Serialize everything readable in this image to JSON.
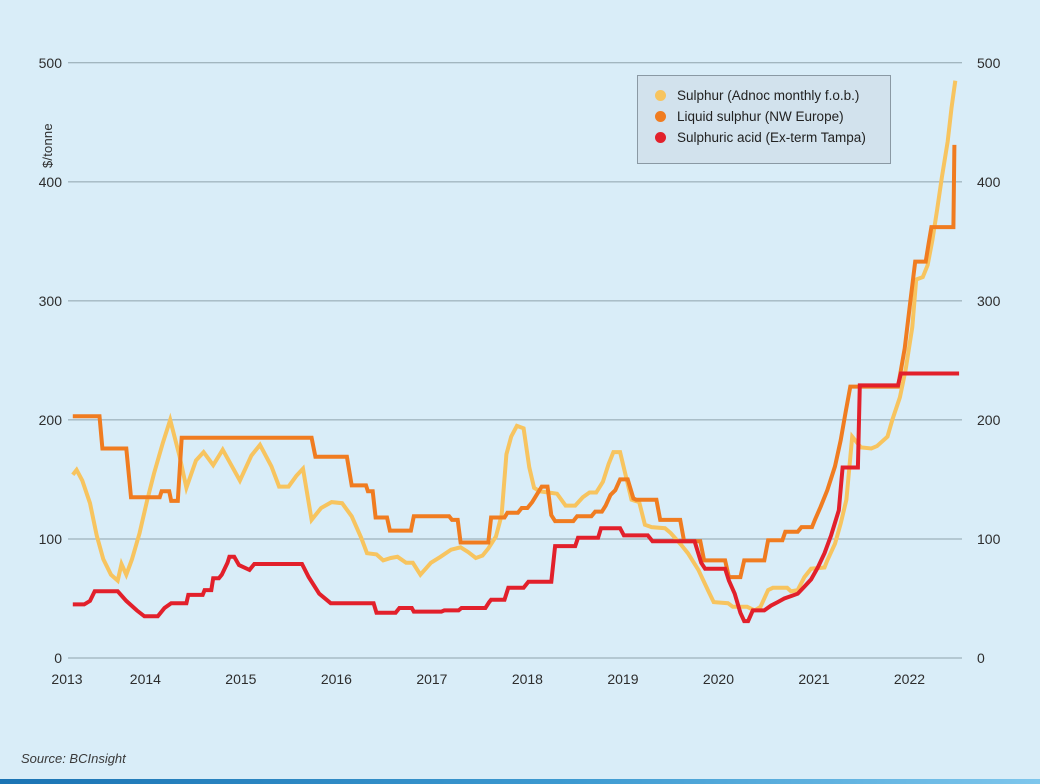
{
  "page": {
    "background": "#D9EDF8"
  },
  "source": "Source: BCInsight",
  "chart_data": {
    "type": "line",
    "title": "",
    "xlabel": "",
    "ylabel": "$/tonne",
    "x_ticks": [
      2013,
      2014,
      2015,
      2016,
      2017,
      2018,
      2019,
      2020,
      2021,
      2022
    ],
    "y_ticks": [
      0,
      100,
      200,
      300,
      400,
      500
    ],
    "xlim": [
      2013.19,
      2022.55
    ],
    "ylim": [
      0,
      500
    ],
    "grid": "horizontal-only",
    "grid_color": "#8FA3AC",
    "legend_position": "top-right",
    "line_width": 4,
    "series": [
      {
        "name": "sulphur-adnoc",
        "label": "Sulphur (Adnoc monthly f.o.b.)",
        "color": "#F7C45F",
        "points": [
          [
            2013.24,
            154
          ],
          [
            2013.28,
            158
          ],
          [
            2013.34,
            149
          ],
          [
            2013.42,
            130
          ],
          [
            2013.49,
            103
          ],
          [
            2013.56,
            83
          ],
          [
            2013.64,
            70
          ],
          [
            2013.71,
            65
          ],
          [
            2013.75,
            79
          ],
          [
            2013.8,
            70
          ],
          [
            2013.86,
            83
          ],
          [
            2013.94,
            105
          ],
          [
            2014.02,
            133
          ],
          [
            2014.09,
            155
          ],
          [
            2014.18,
            180
          ],
          [
            2014.26,
            200
          ],
          [
            2014.36,
            169
          ],
          [
            2014.43,
            143
          ],
          [
            2014.53,
            166
          ],
          [
            2014.61,
            173
          ],
          [
            2014.71,
            162
          ],
          [
            2014.81,
            175
          ],
          [
            2014.99,
            149
          ],
          [
            2015.11,
            170
          ],
          [
            2015.2,
            179
          ],
          [
            2015.32,
            161
          ],
          [
            2015.4,
            144
          ],
          [
            2015.5,
            144
          ],
          [
            2015.58,
            153
          ],
          [
            2015.65,
            159
          ],
          [
            2015.74,
            116
          ],
          [
            2015.84,
            126
          ],
          [
            2015.95,
            131
          ],
          [
            2016.06,
            130
          ],
          [
            2016.16,
            119
          ],
          [
            2016.26,
            101
          ],
          [
            2016.32,
            88
          ],
          [
            2016.42,
            87
          ],
          [
            2016.49,
            82
          ],
          [
            2016.57,
            84
          ],
          [
            2016.64,
            85
          ],
          [
            2016.73,
            80
          ],
          [
            2016.8,
            80
          ],
          [
            2016.88,
            70
          ],
          [
            2016.99,
            80
          ],
          [
            2017.09,
            85
          ],
          [
            2017.2,
            91
          ],
          [
            2017.3,
            93
          ],
          [
            2017.38,
            89
          ],
          [
            2017.46,
            84
          ],
          [
            2017.53,
            86
          ],
          [
            2017.59,
            92
          ],
          [
            2017.67,
            102
          ],
          [
            2017.73,
            120
          ],
          [
            2017.78,
            171
          ],
          [
            2017.83,
            186
          ],
          [
            2017.89,
            195
          ],
          [
            2017.96,
            193
          ],
          [
            2018.02,
            160
          ],
          [
            2018.07,
            143
          ],
          [
            2018.13,
            140
          ],
          [
            2018.22,
            139
          ],
          [
            2018.31,
            138
          ],
          [
            2018.4,
            128
          ],
          [
            2018.5,
            128
          ],
          [
            2018.58,
            135
          ],
          [
            2018.65,
            139
          ],
          [
            2018.72,
            139
          ],
          [
            2018.79,
            148
          ],
          [
            2018.85,
            163
          ],
          [
            2018.9,
            173
          ],
          [
            2018.97,
            173
          ],
          [
            2019.09,
            133
          ],
          [
            2019.17,
            131
          ],
          [
            2019.23,
            112
          ],
          [
            2019.3,
            110
          ],
          [
            2019.44,
            109
          ],
          [
            2019.5,
            105
          ],
          [
            2019.61,
            95
          ],
          [
            2019.68,
            88
          ],
          [
            2019.79,
            74
          ],
          [
            2019.89,
            57
          ],
          [
            2019.95,
            47
          ],
          [
            2020.1,
            46
          ],
          [
            2020.15,
            43
          ],
          [
            2020.3,
            43
          ],
          [
            2020.38,
            40
          ],
          [
            2020.44,
            43
          ],
          [
            2020.52,
            57
          ],
          [
            2020.57,
            59
          ],
          [
            2020.72,
            59
          ],
          [
            2020.76,
            56
          ],
          [
            2020.83,
            57
          ],
          [
            2020.9,
            68
          ],
          [
            2020.97,
            75
          ],
          [
            2021.11,
            76
          ],
          [
            2021.14,
            82
          ],
          [
            2021.22,
            96
          ],
          [
            2021.28,
            113
          ],
          [
            2021.34,
            133
          ],
          [
            2021.4,
            186
          ],
          [
            2021.49,
            177
          ],
          [
            2021.6,
            176
          ],
          [
            2021.66,
            178
          ],
          [
            2021.77,
            186
          ],
          [
            2021.82,
            200
          ],
          [
            2021.9,
            219
          ],
          [
            2021.96,
            242
          ],
          [
            2022.03,
            278
          ],
          [
            2022.07,
            318
          ],
          [
            2022.14,
            320
          ],
          [
            2022.19,
            330
          ],
          [
            2022.24,
            351
          ],
          [
            2022.29,
            377
          ],
          [
            2022.34,
            404
          ],
          [
            2022.4,
            434
          ],
          [
            2022.44,
            462
          ],
          [
            2022.48,
            485
          ]
        ]
      },
      {
        "name": "liquid-sulphur-nw-europe",
        "label": "Liquid sulphur (NW Europe)",
        "color": "#F07C20",
        "points": [
          [
            2013.24,
            203
          ],
          [
            2013.52,
            203
          ],
          [
            2013.55,
            176
          ],
          [
            2013.8,
            176
          ],
          [
            2013.85,
            135
          ],
          [
            2014.15,
            135
          ],
          [
            2014.17,
            140
          ],
          [
            2014.25,
            140
          ],
          [
            2014.27,
            132
          ],
          [
            2014.34,
            132
          ],
          [
            2014.38,
            185
          ],
          [
            2015.74,
            185
          ],
          [
            2015.78,
            169
          ],
          [
            2016.11,
            169
          ],
          [
            2016.16,
            145
          ],
          [
            2016.31,
            145
          ],
          [
            2016.33,
            140
          ],
          [
            2016.38,
            140
          ],
          [
            2016.41,
            118
          ],
          [
            2016.53,
            118
          ],
          [
            2016.56,
            107
          ],
          [
            2016.78,
            107
          ],
          [
            2016.81,
            119
          ],
          [
            2017.18,
            119
          ],
          [
            2017.21,
            116
          ],
          [
            2017.27,
            116
          ],
          [
            2017.3,
            97
          ],
          [
            2017.59,
            97
          ],
          [
            2017.62,
            118
          ],
          [
            2017.76,
            118
          ],
          [
            2017.79,
            122
          ],
          [
            2017.9,
            122
          ],
          [
            2017.94,
            126
          ],
          [
            2018.0,
            126
          ],
          [
            2018.05,
            131
          ],
          [
            2018.15,
            144
          ],
          [
            2018.21,
            144
          ],
          [
            2018.25,
            120
          ],
          [
            2018.29,
            115
          ],
          [
            2018.48,
            115
          ],
          [
            2018.52,
            119
          ],
          [
            2018.67,
            119
          ],
          [
            2018.71,
            123
          ],
          [
            2018.78,
            123
          ],
          [
            2018.82,
            128
          ],
          [
            2018.87,
            137
          ],
          [
            2018.92,
            141
          ],
          [
            2018.97,
            150
          ],
          [
            2019.05,
            150
          ],
          [
            2019.11,
            134
          ],
          [
            2019.14,
            133
          ],
          [
            2019.35,
            133
          ],
          [
            2019.39,
            116
          ],
          [
            2019.6,
            116
          ],
          [
            2019.64,
            98
          ],
          [
            2019.81,
            98
          ],
          [
            2019.85,
            82
          ],
          [
            2020.07,
            82
          ],
          [
            2020.11,
            68
          ],
          [
            2020.23,
            68
          ],
          [
            2020.27,
            82
          ],
          [
            2020.48,
            82
          ],
          [
            2020.52,
            99
          ],
          [
            2020.67,
            99
          ],
          [
            2020.7,
            106
          ],
          [
            2020.83,
            106
          ],
          [
            2020.87,
            110
          ],
          [
            2020.98,
            110
          ],
          [
            2021.01,
            116
          ],
          [
            2021.07,
            127
          ],
          [
            2021.14,
            141
          ],
          [
            2021.22,
            161
          ],
          [
            2021.28,
            183
          ],
          [
            2021.33,
            206
          ],
          [
            2021.38,
            228
          ],
          [
            2021.88,
            228
          ],
          [
            2021.95,
            260
          ],
          [
            2022.01,
            300
          ],
          [
            2022.06,
            333
          ],
          [
            2022.17,
            333
          ],
          [
            2022.2,
            348
          ],
          [
            2022.23,
            362
          ],
          [
            2022.46,
            362
          ],
          [
            2022.47,
            431
          ]
        ]
      },
      {
        "name": "sulphuric-acid-tampa",
        "label": "Sulphuric acid (Ex-term Tampa)",
        "color": "#E2202B",
        "points": [
          [
            2013.24,
            45
          ],
          [
            2013.36,
            45
          ],
          [
            2013.42,
            48
          ],
          [
            2013.47,
            56
          ],
          [
            2013.71,
            56
          ],
          [
            2013.8,
            48
          ],
          [
            2013.91,
            40
          ],
          [
            2013.99,
            35
          ],
          [
            2014.13,
            35
          ],
          [
            2014.2,
            42
          ],
          [
            2014.27,
            46
          ],
          [
            2014.43,
            46
          ],
          [
            2014.45,
            53
          ],
          [
            2014.6,
            53
          ],
          [
            2014.62,
            57
          ],
          [
            2014.69,
            57
          ],
          [
            2014.71,
            67
          ],
          [
            2014.77,
            67
          ],
          [
            2014.8,
            70
          ],
          [
            2014.86,
            80
          ],
          [
            2014.88,
            85
          ],
          [
            2014.93,
            85
          ],
          [
            2014.98,
            78
          ],
          [
            2015.09,
            74
          ],
          [
            2015.14,
            79
          ],
          [
            2015.64,
            79
          ],
          [
            2015.71,
            68
          ],
          [
            2015.82,
            54
          ],
          [
            2015.94,
            46
          ],
          [
            2016.39,
            46
          ],
          [
            2016.42,
            38
          ],
          [
            2016.62,
            38
          ],
          [
            2016.66,
            42
          ],
          [
            2016.79,
            42
          ],
          [
            2016.81,
            39
          ],
          [
            2017.1,
            39
          ],
          [
            2017.13,
            40
          ],
          [
            2017.28,
            40
          ],
          [
            2017.31,
            42
          ],
          [
            2017.56,
            42
          ],
          [
            2017.6,
            47
          ],
          [
            2017.62,
            49
          ],
          [
            2017.76,
            49
          ],
          [
            2017.8,
            59
          ],
          [
            2017.96,
            59
          ],
          [
            2018.01,
            64
          ],
          [
            2018.25,
            64
          ],
          [
            2018.29,
            94
          ],
          [
            2018.5,
            94
          ],
          [
            2018.53,
            101
          ],
          [
            2018.74,
            101
          ],
          [
            2018.77,
            109
          ],
          [
            2018.97,
            109
          ],
          [
            2019.01,
            103
          ],
          [
            2019.26,
            103
          ],
          [
            2019.31,
            98
          ],
          [
            2019.75,
            98
          ],
          [
            2019.82,
            80
          ],
          [
            2019.86,
            75
          ],
          [
            2020.07,
            75
          ],
          [
            2020.11,
            65
          ],
          [
            2020.17,
            54
          ],
          [
            2020.23,
            38
          ],
          [
            2020.27,
            31
          ],
          [
            2020.31,
            31
          ],
          [
            2020.36,
            40
          ],
          [
            2020.48,
            40
          ],
          [
            2020.55,
            44
          ],
          [
            2020.62,
            47
          ],
          [
            2020.69,
            50
          ],
          [
            2020.76,
            52
          ],
          [
            2020.83,
            54
          ],
          [
            2020.9,
            60
          ],
          [
            2020.97,
            66
          ],
          [
            2021.04,
            76
          ],
          [
            2021.11,
            88
          ],
          [
            2021.18,
            103
          ],
          [
            2021.26,
            124
          ],
          [
            2021.3,
            160
          ],
          [
            2021.46,
            160
          ],
          [
            2021.48,
            229
          ],
          [
            2021.88,
            229
          ],
          [
            2021.91,
            239
          ],
          [
            2022.52,
            239
          ]
        ]
      }
    ]
  }
}
